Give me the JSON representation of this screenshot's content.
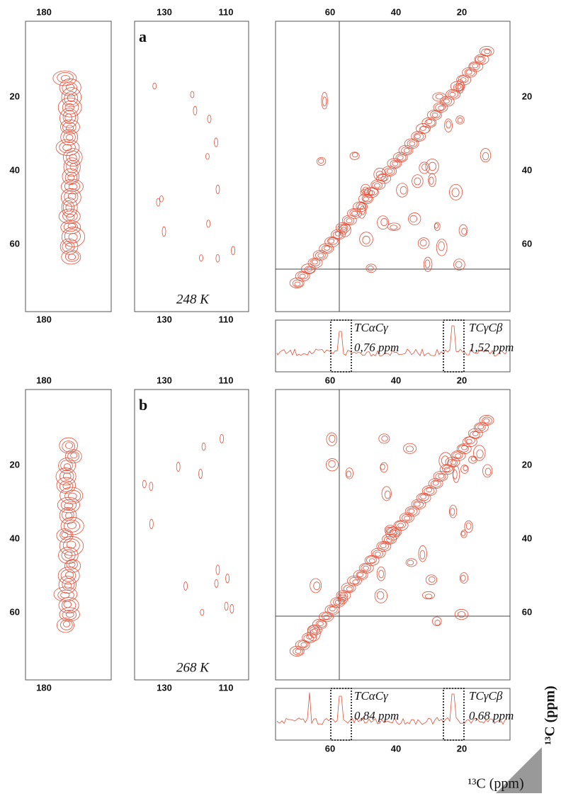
{
  "rows": [
    {
      "label": "a",
      "temperature": "248 K",
      "left_top_ticks": [
        "180"
      ],
      "left_bottom_ticks": [
        "180"
      ],
      "left_y_ticks": [
        "20",
        "40",
        "60"
      ],
      "middle_top_ticks": [
        "130",
        "110"
      ],
      "middle_bottom_ticks": [
        "130",
        "110"
      ],
      "right_top_ticks": [
        "60",
        "40",
        "20"
      ],
      "right_y_ticks": [
        "20",
        "40",
        "60"
      ],
      "strip_bottom_ticks": [],
      "annotations": [
        {
          "name": "TCαCγ",
          "value": "0,76 ppm"
        },
        {
          "name": "TCγCβ",
          "value": "1,52 ppm"
        }
      ]
    },
    {
      "label": "b",
      "temperature": "268 K",
      "left_top_ticks": [
        "180"
      ],
      "left_bottom_ticks": [
        "180"
      ],
      "left_y_ticks": [
        "20",
        "40",
        "60"
      ],
      "middle_top_ticks": [
        "130",
        "110"
      ],
      "middle_bottom_ticks": [
        "130",
        "110"
      ],
      "right_top_ticks": [
        "60",
        "40",
        "20"
      ],
      "right_y_ticks": [
        "20",
        "40",
        "60"
      ],
      "strip_bottom_ticks": [
        "60",
        "40",
        "20"
      ],
      "annotations": [
        {
          "name": "TCαCγ",
          "value": "0,84 ppm"
        },
        {
          "name": "TCγCβ",
          "value": "0,68 ppm"
        }
      ]
    }
  ],
  "axis_labels": {
    "x": "¹³C (ppm)",
    "y": "¹³C (ppm)"
  }
}
